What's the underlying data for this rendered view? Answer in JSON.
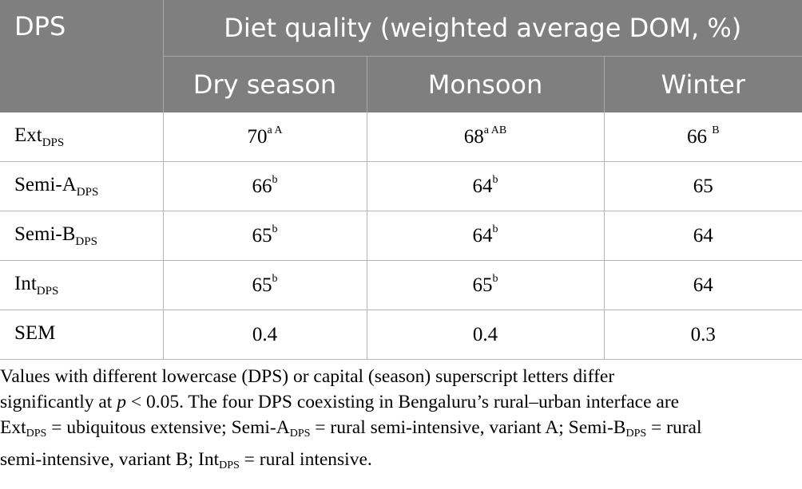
{
  "header": {
    "dps_label": "DPS",
    "group_label": "Diet quality (weighted average DOM, %)",
    "columns": [
      "Dry season",
      "Monsoon",
      "Winter"
    ]
  },
  "rows": [
    {
      "name": "Ext",
      "sub": "DPS",
      "cells": [
        {
          "v": "70",
          "s": "a A"
        },
        {
          "v": "68",
          "s": "a AB"
        },
        {
          "v": "66 ",
          "s": "B"
        }
      ]
    },
    {
      "name": "Semi-A",
      "sub": "DPS",
      "cells": [
        {
          "v": "66",
          "s": "b"
        },
        {
          "v": "64",
          "s": "b"
        },
        {
          "v": "65",
          "s": ""
        }
      ]
    },
    {
      "name": "Semi-B",
      "sub": "DPS",
      "cells": [
        {
          "v": "65",
          "s": "b"
        },
        {
          "v": "64",
          "s": "b"
        },
        {
          "v": "64",
          "s": ""
        }
      ]
    },
    {
      "name": "Int",
      "sub": "DPS",
      "cells": [
        {
          "v": "65",
          "s": "b"
        },
        {
          "v": "65",
          "s": "b"
        },
        {
          "v": "64",
          "s": ""
        }
      ]
    },
    {
      "name": "SEM",
      "sub": "",
      "cells": [
        {
          "v": "0.4",
          "s": ""
        },
        {
          "v": "0.4",
          "s": ""
        },
        {
          "v": "0.3",
          "s": ""
        }
      ]
    }
  ],
  "footnote": {
    "line1": "Values with different lowercase (DPS) or capital (season) superscript letters differ",
    "line2_a": "significantly at ",
    "line2_p": "p",
    "line2_b": " < 0.05. The four DPS coexisting in Bengaluru’s rural–urban interface are",
    "l3_ext": "Ext",
    "l3_sub1": "DPS",
    "l3_a": " = ubiquitous extensive; Semi-A",
    "l3_sub2": "DPS",
    "l3_b": " = rural semi-intensive, variant A; Semi-B",
    "l3_sub3": "DPS",
    "l3_c": " = rural",
    "l4_a": "semi-intensive, variant B; Int",
    "l4_sub": "DPS",
    "l4_b": " = rural intensive."
  }
}
